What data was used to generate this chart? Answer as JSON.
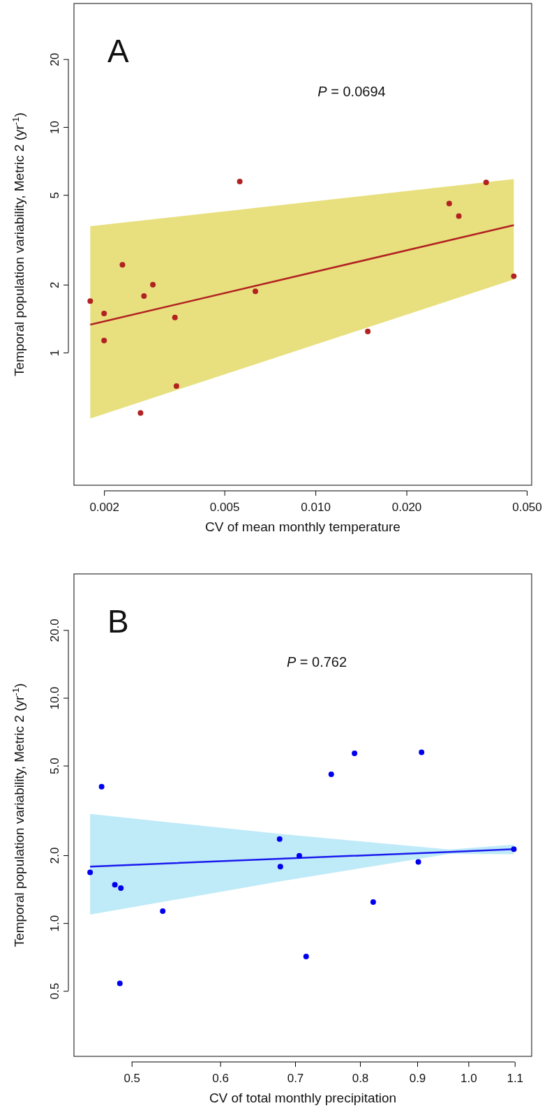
{
  "chart_data": [
    {
      "type": "scatter",
      "title": "A",
      "xlabel": "CV of mean monthly temperature",
      "ylabel": "Temporal population variability, Metric 2 (yr$^{-1}$)",
      "annotations": [
        "P = 0.0694"
      ],
      "log": "xy",
      "grid": false,
      "xlim": [
        0.00159,
        0.0519
      ],
      "ylim": [
        0.258,
        35.3
      ],
      "xticks": [
        0.002,
        0.005,
        {
          "value": 0.01,
          "label": "0.010"
        },
        {
          "value": 0.02,
          "label": "0.020"
        },
        {
          "value": 0.05,
          "label": "0.050"
        }
      ],
      "yticks": [
        1,
        2,
        5,
        10,
        20
      ],
      "series": [
        {
          "type": "line",
          "color": "#b22222",
          "colors": [
            "#e8e07e",
            "#e8e07e"
          ],
          "x": [
            0.0018,
            0.0453
          ],
          "values": [
            1.33,
            3.67
          ],
          "lower": [
            0.51,
            2.11
          ],
          "upper": [
            3.63,
            5.88
          ]
        },
        {
          "marker": "circle",
          "color": "#b22222",
          "x": [
            0.00562,
            0.0367,
            0.0277,
            0.0298,
            0.0023,
            0.0453,
            0.0018,
            0.002,
            0.002,
            0.00271,
            0.0029,
            0.00343,
            0.00347,
            0.00264,
            0.00633,
            0.0149
          ],
          "values": [
            5.73,
            5.68,
            4.58,
            4.03,
            2.45,
            2.18,
            1.69,
            1.49,
            1.13,
            1.78,
            2.0,
            1.43,
            0.71,
            0.54,
            1.87,
            1.24
          ]
        }
      ]
    },
    {
      "type": "scatter",
      "title": "B",
      "xlabel": "CV of total monthly precipitation",
      "ylabel": "Temporal population variability, Metric 2 (yr$^{-1}$)",
      "annotations": [
        "P = 0.762"
      ],
      "log": "xy",
      "grid": false,
      "xlim": [
        0.444,
        1.139
      ],
      "ylim": [
        0.256,
        35.5
      ],
      "xticks": [
        0.5,
        0.6,
        0.7,
        0.8,
        0.9,
        {
          "value": 1,
          "label": "1.0"
        },
        1.1
      ],
      "yticks": [
        0.5,
        {
          "value": 1,
          "label": "1.0"
        },
        {
          "value": 2,
          "label": "2.0"
        },
        {
          "value": 5,
          "label": "5.0"
        },
        {
          "value": 10,
          "label": "10.0"
        },
        {
          "value": 20,
          "label": "20.0"
        }
      ],
      "series": [
        {
          "type": "line",
          "color": "#1a1aee",
          "colors": [
            "#bfeaf8",
            "#bfeaf8",
            "#bfeaf8",
            "#bfeaf8"
          ],
          "x": [
            0.459,
            0.678,
            0.962,
            1.098
          ],
          "values": [
            1.78,
            1.93,
            2.07,
            2.13
          ],
          "lower": [
            1.09,
            1.53,
            2.03,
            2.02
          ],
          "upper": [
            3.05,
            2.49,
            2.12,
            2.23
          ]
        },
        {
          "marker": "circle",
          "color": "#0000ee",
          "x": [
            0.47,
            0.754,
            0.791,
            0.908,
            0.678,
            0.706,
            0.679,
            0.459,
            0.483,
            0.489,
            0.533,
            0.822,
            0.902,
            1.098,
            0.716,
            0.488
          ],
          "values": [
            4.03,
            4.58,
            5.67,
            5.73,
            2.36,
            1.99,
            1.78,
            1.68,
            1.48,
            1.43,
            1.13,
            1.24,
            1.87,
            2.13,
            0.71,
            0.54
          ]
        }
      ]
    }
  ]
}
